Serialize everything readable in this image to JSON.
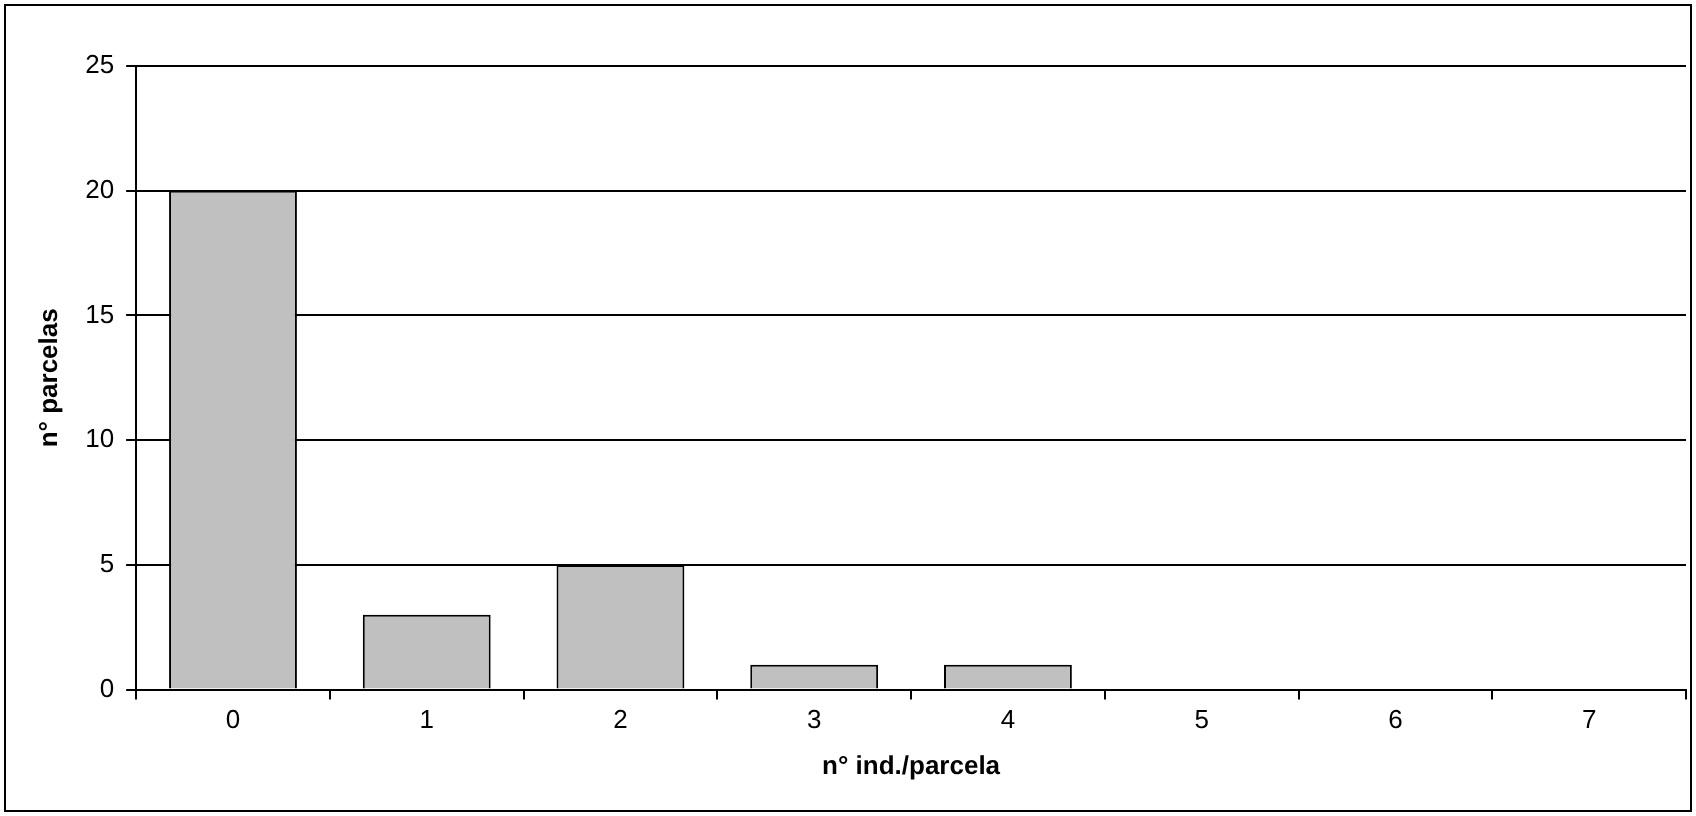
{
  "chart_data": {
    "type": "bar",
    "xlabel": "n° ind./parcela",
    "ylabel": "n° parcelas",
    "categories": [
      "0",
      "1",
      "2",
      "3",
      "4",
      "5",
      "6",
      "7"
    ],
    "values": [
      20,
      3,
      5,
      1,
      1,
      0,
      0,
      0
    ],
    "color": "#c0c0c0",
    "ylim": [
      0,
      25
    ],
    "yticks": [
      0,
      5,
      10,
      15,
      20,
      25
    ],
    "grid": "y",
    "legend": false
  }
}
